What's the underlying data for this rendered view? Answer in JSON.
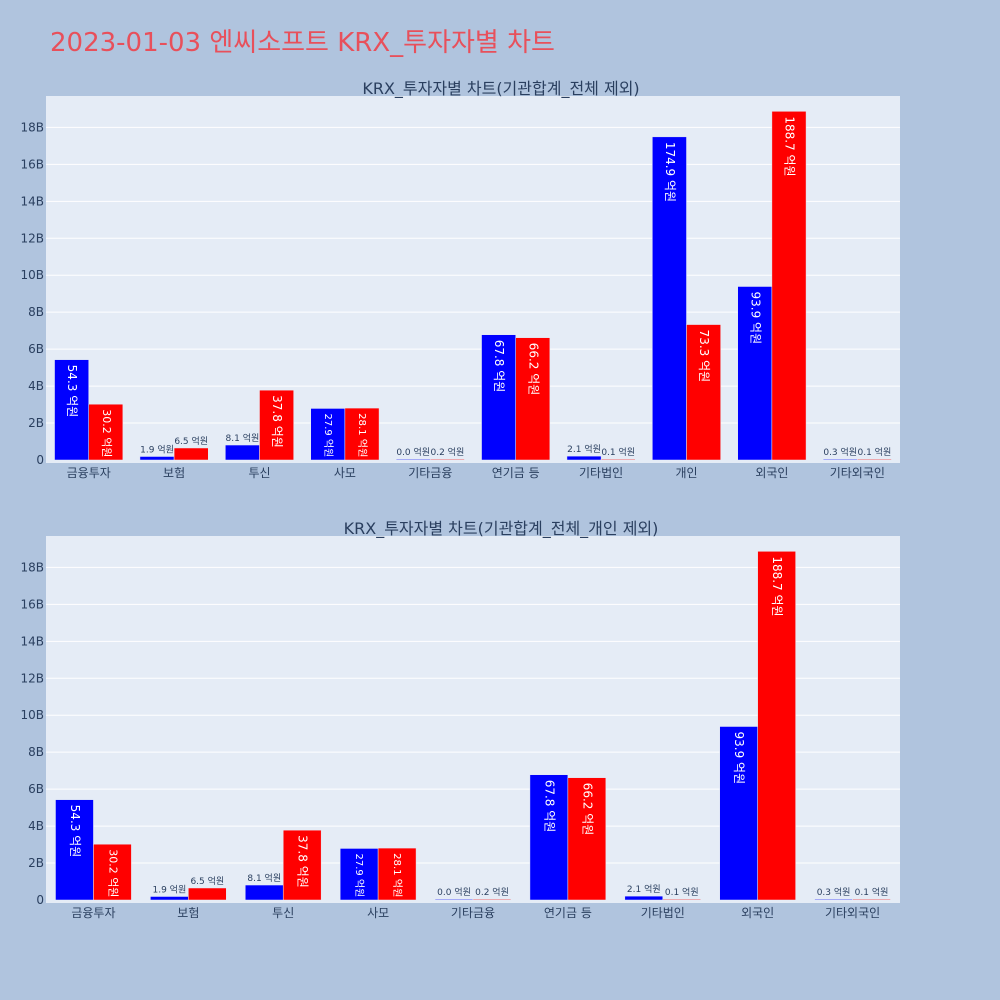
{
  "page": {
    "title": "2023-01-03 엔씨소프트 KRX_투자자별 차트"
  },
  "colors": {
    "page_bg": "#b0c4de",
    "plot_bg": "#e5ecf6",
    "grid": "#ffffff",
    "title": "#e8505b",
    "buy": "#0000ff",
    "sell": "#ff0000"
  },
  "chart_data": [
    {
      "type": "bar",
      "title": "KRX_투자자별 차트(기관합계_전체 제외)",
      "categories": [
        "금융투자",
        "보험",
        "투신",
        "사모",
        "기타금융",
        "연기금 등",
        "기타법인",
        "개인",
        "외국인",
        "기타외국인"
      ],
      "y_ticks": [
        "0",
        "2B",
        "4B",
        "6B",
        "8B",
        "10B",
        "12B",
        "14B",
        "16B",
        "18B"
      ],
      "ylim": [
        0,
        19.7
      ],
      "series": [
        {
          "color": "#0000ff",
          "values": [
            5.43,
            0.19,
            0.81,
            2.79,
            0.0,
            6.78,
            0.21,
            17.49,
            9.39,
            0.03
          ],
          "labels": [
            "54.3 억원",
            "1.9 억원",
            "8.1 억원",
            "27.9 억원",
            "0.0 억원",
            "67.8 억원",
            "2.1 억원",
            "174.9 억원",
            "93.9 억원",
            "0.3 억원"
          ]
        },
        {
          "color": "#ff0000",
          "values": [
            3.02,
            0.65,
            3.78,
            2.81,
            0.02,
            6.62,
            0.01,
            7.33,
            18.87,
            0.01
          ],
          "labels": [
            "30.2 억원",
            "6.5 억원",
            "37.8 억원",
            "28.1 억원",
            "0.2 억원",
            "66.2 억원",
            "0.1 억원",
            "73.3 억원",
            "188.7 억원",
            "0.1 억원"
          ]
        }
      ]
    },
    {
      "type": "bar",
      "title": "KRX_투자자별 차트(기관합계_전체_개인 제외)",
      "categories": [
        "금융투자",
        "보험",
        "투신",
        "사모",
        "기타금융",
        "연기금 등",
        "기타법인",
        "외국인",
        "기타외국인"
      ],
      "y_ticks": [
        "0",
        "2B",
        "4B",
        "6B",
        "8B",
        "10B",
        "12B",
        "14B",
        "16B",
        "18B"
      ],
      "ylim": [
        0,
        19.7
      ],
      "series": [
        {
          "color": "#0000ff",
          "values": [
            5.43,
            0.19,
            0.81,
            2.79,
            0.0,
            6.78,
            0.21,
            9.39,
            0.03
          ],
          "labels": [
            "54.3 억원",
            "1.9 억원",
            "8.1 억원",
            "27.9 억원",
            "0.0 억원",
            "67.8 억원",
            "2.1 억원",
            "93.9 억원",
            "0.3 억원"
          ]
        },
        {
          "color": "#ff0000",
          "values": [
            3.02,
            0.65,
            3.78,
            2.81,
            0.02,
            6.62,
            0.01,
            18.87,
            0.01
          ],
          "labels": [
            "30.2 억원",
            "6.5 억원",
            "37.8 억원",
            "28.1 억원",
            "0.2 억원",
            "66.2 억원",
            "0.1 억원",
            "188.7 억원",
            "0.1 억원"
          ]
        }
      ]
    }
  ]
}
